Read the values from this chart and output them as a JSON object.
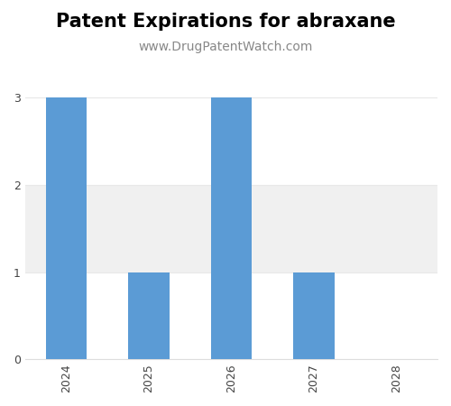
{
  "title": "Patent Expirations for abraxane",
  "subtitle": "www.DrugPatentWatch.com",
  "years": [
    "2024",
    "2025",
    "2026",
    "2027",
    "2028"
  ],
  "values": [
    3,
    1,
    3,
    1,
    0
  ],
  "bar_color": "#5B9BD5",
  "background_color": "#ffffff",
  "grid_color": "#e8e8e8",
  "band_color": "#f0f0f0",
  "ylim": [
    0,
    3.4
  ],
  "yticks": [
    0,
    1,
    2,
    3
  ],
  "title_fontsize": 15,
  "subtitle_fontsize": 10,
  "tick_fontsize": 9,
  "bar_width": 0.5,
  "figsize": [
    5.0,
    4.5
  ],
  "dpi": 100
}
